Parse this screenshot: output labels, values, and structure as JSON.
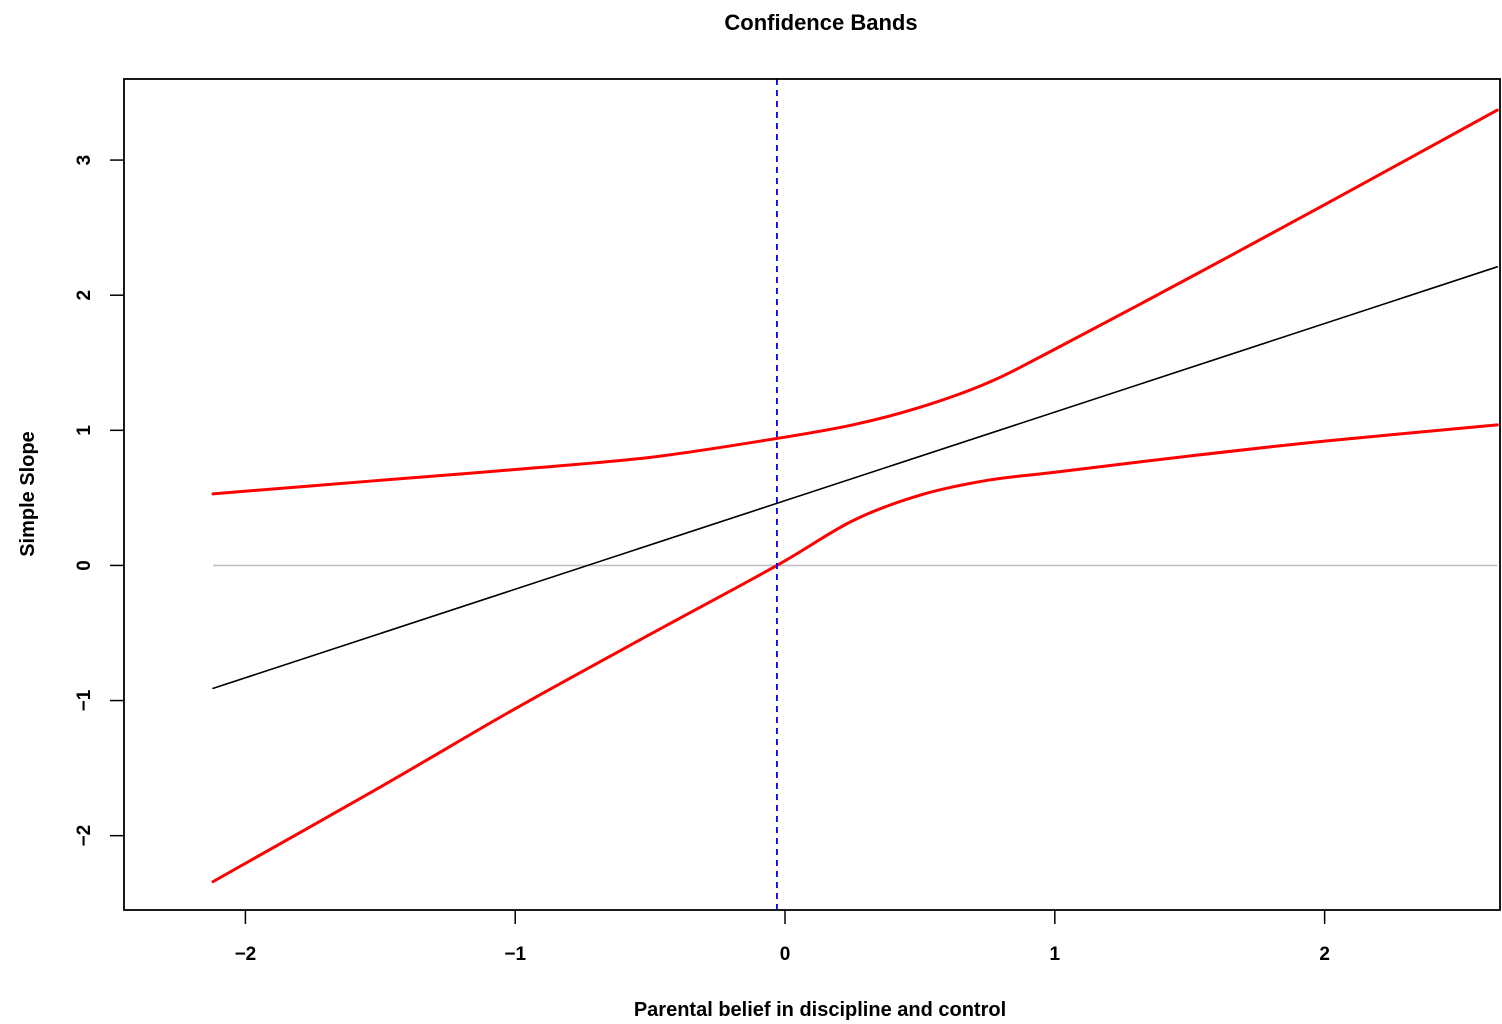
{
  "chart_data": {
    "type": "line",
    "title": "Confidence Bands",
    "xlabel": "Parental belief in discipline and control",
    "ylabel": "Simple Slope",
    "xlim": [
      -2.45,
      2.65
    ],
    "ylim": [
      -2.55,
      3.6
    ],
    "xticks": [
      -2,
      -1,
      0,
      1,
      2
    ],
    "xtick_labels": [
      "−2",
      "−1",
      "0",
      "1",
      "2"
    ],
    "yticks": [
      -2,
      -1,
      0,
      1,
      2,
      3
    ],
    "ytick_labels": [
      "−2",
      "−1",
      "0",
      "1",
      "2",
      "3"
    ],
    "grid": false,
    "colors": {
      "simple_slope": "#000000",
      "confidence_band": "#ff0000",
      "reference_zero": "#bebebe",
      "vertical_marker": "#0000ff"
    },
    "reference_lines": [
      {
        "orientation": "horizontal",
        "value": 0,
        "style": "solid"
      },
      {
        "orientation": "vertical",
        "value": -0.03,
        "style": "dashed"
      }
    ],
    "series": [
      {
        "x": [
          -2.12,
          2.64
        ],
        "y": [
          -0.91,
          2.21
        ]
      },
      {
        "x": [
          -2.12,
          -1.5,
          -1.0,
          -0.5,
          -0.03,
          0.25,
          0.5,
          0.75,
          1.0,
          1.5,
          2.0,
          2.64
        ],
        "y": [
          0.53,
          0.63,
          0.71,
          0.8,
          0.94,
          1.04,
          1.17,
          1.35,
          1.6,
          2.13,
          2.67,
          3.37
        ]
      },
      {
        "x": [
          -2.12,
          -1.5,
          -1.0,
          -0.5,
          -0.03,
          0.25,
          0.5,
          0.75,
          1.0,
          1.5,
          2.0,
          2.64
        ],
        "y": [
          -2.34,
          -1.64,
          -1.06,
          -0.51,
          0.0,
          0.33,
          0.52,
          0.63,
          0.69,
          0.81,
          0.92,
          1.04
        ]
      }
    ]
  }
}
